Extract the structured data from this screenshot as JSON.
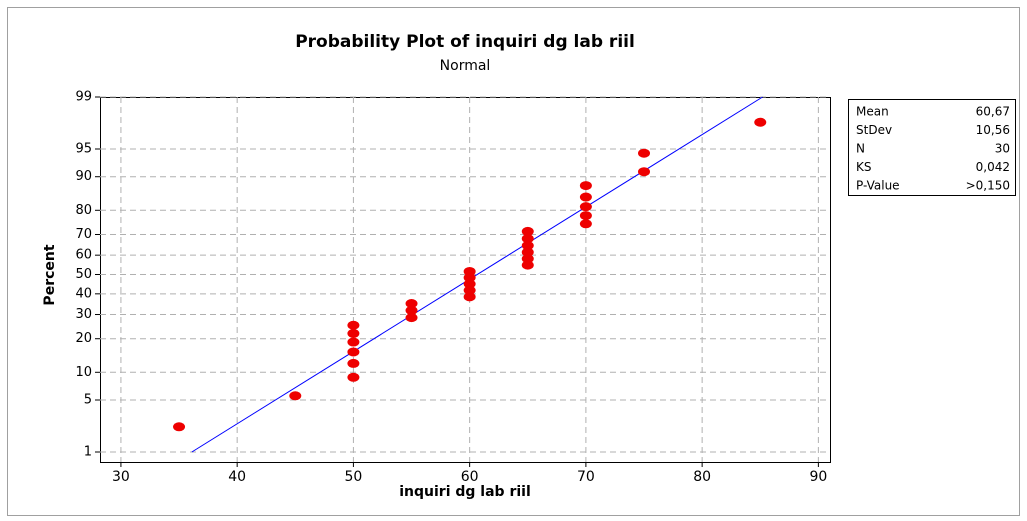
{
  "chart_data": {
    "type": "probability-plot",
    "title": "Probability Plot of inquiri dg lab riil",
    "subtitle": "Normal",
    "x_label": "inquiri dg lab riil",
    "y_label": "Percent",
    "x": [
      35,
      45,
      50,
      50,
      50,
      50,
      50,
      50,
      55,
      55,
      55,
      60,
      60,
      60,
      60,
      60,
      65,
      65,
      65,
      65,
      65,
      65,
      70,
      70,
      70,
      70,
      70,
      75,
      75,
      85
    ],
    "values": [
      2.3,
      5.6,
      8.9,
      12.2,
      15.5,
      18.8,
      22.0,
      25.3,
      28.6,
      31.9,
      35.2,
      38.5,
      41.8,
      45.1,
      48.4,
      51.6,
      54.9,
      58.2,
      61.5,
      64.8,
      68.1,
      71.4,
      74.7,
      78.0,
      81.3,
      84.5,
      87.8,
      91.1,
      94.4,
      97.7
    ],
    "color": "#ee0000",
    "fit_line": {
      "x": [
        36.1,
        85.2
      ],
      "values": [
        1,
        99
      ],
      "color": "#0000ff"
    },
    "xlim": [
      28.2,
      91
    ],
    "xticks": [
      30,
      40,
      50,
      60,
      70,
      80,
      90
    ],
    "ylim": [
      0.7,
      99
    ],
    "yticks": [
      1,
      5,
      10,
      20,
      30,
      40,
      50,
      60,
      70,
      80,
      90,
      95,
      99
    ],
    "y_scale": "normal-probability",
    "grid": true,
    "stats": [
      {
        "label": "Mean",
        "value": "60,67"
      },
      {
        "label": "StDev",
        "value": "10,56"
      },
      {
        "label": "N",
        "value": "30"
      },
      {
        "label": "KS",
        "value": "0,042"
      },
      {
        "label": "P-Value",
        "value": ">0,150"
      }
    ]
  }
}
